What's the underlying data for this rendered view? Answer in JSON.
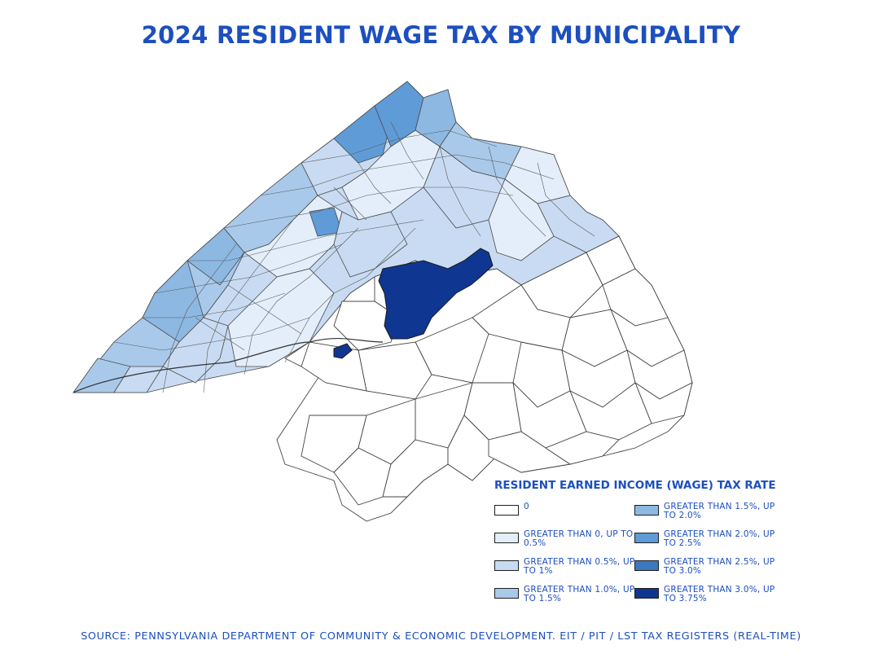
{
  "title": "2024 RESIDENT WAGE TAX BY MUNICIPALITY",
  "legend": {
    "title": "RESIDENT EARNED INCOME (WAGE) TAX RATE",
    "items": [
      {
        "label": "0",
        "color": "#ffffff"
      },
      {
        "label": "GREATER THAN 0, UP TO 0.5%",
        "color": "#e3eefa"
      },
      {
        "label": "GREATER THAN 0.5%, UP TO 1%",
        "color": "#c8dbf2"
      },
      {
        "label": "GREATER THAN 1.0%, UP TO 1.5%",
        "color": "#a9c9ea"
      },
      {
        "label": "GREATER THAN 1.5%, UP TO 2.0%",
        "color": "#8cb8e2"
      },
      {
        "label": "GREATER THAN 2.0%, UP TO 2.5%",
        "color": "#5f9bd6"
      },
      {
        "label": "GREATER THAN 2.5%, UP TO 3.0%",
        "color": "#3b78bf"
      },
      {
        "label": "GREATER THAN 3.0%, UP TO 3.75%",
        "color": "#0f3691"
      }
    ]
  },
  "source": "SOURCE: PENNSYLVANIA DEPARTMENT OF COMMUNITY & ECONOMIC DEVELOPMENT. EIT / PIT / LST TAX REGISTERS (REAL-TIME)"
}
